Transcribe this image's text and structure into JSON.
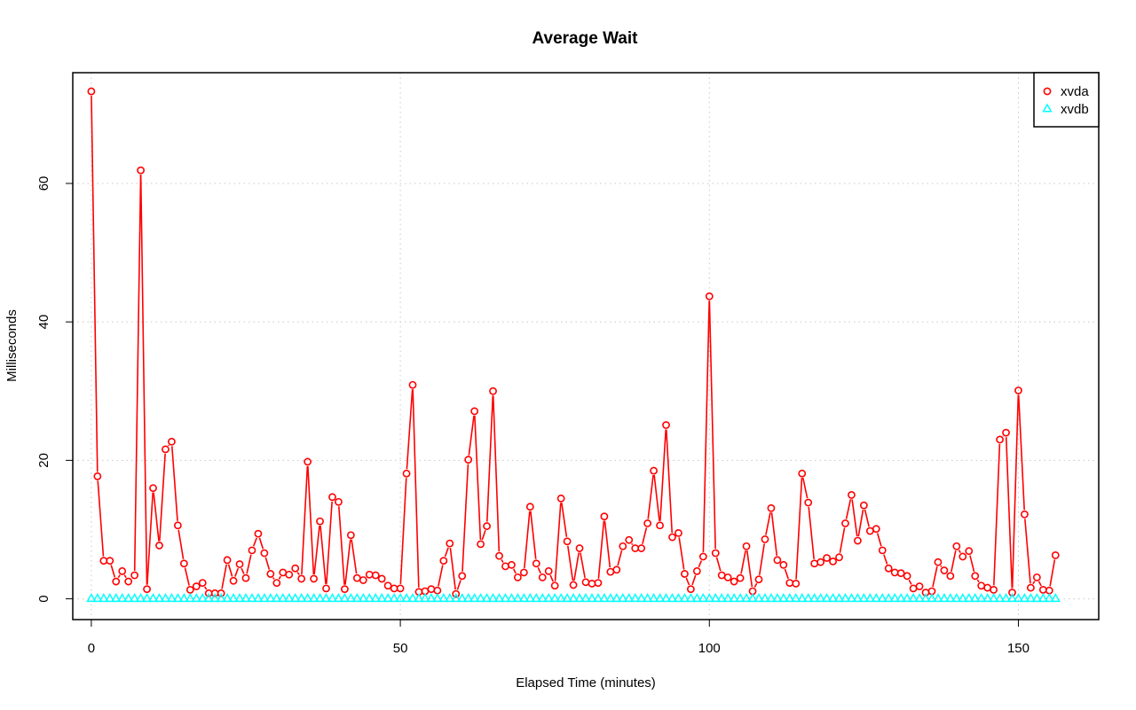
{
  "chart_data": {
    "type": "line",
    "title": "Average Wait",
    "xlabel": "Elapsed Time (minutes)",
    "ylabel": "Milliseconds",
    "xlim": [
      -3,
      163
    ],
    "ylim": [
      -3,
      76
    ],
    "xticks": [
      0,
      50,
      100,
      150
    ],
    "yticks": [
      0,
      20,
      40,
      60
    ],
    "grid": true,
    "legend_position": "top-right",
    "series": [
      {
        "name": "xvda",
        "color": "#ff0000",
        "marker": "circle",
        "x": [
          0,
          1,
          2,
          3,
          4,
          5,
          6,
          7,
          8,
          9,
          10,
          11,
          12,
          13,
          14,
          15,
          16,
          17,
          18,
          19,
          20,
          21,
          22,
          23,
          24,
          25,
          26,
          27,
          28,
          29,
          30,
          31,
          32,
          33,
          34,
          35,
          36,
          37,
          38,
          39,
          40,
          41,
          42,
          43,
          44,
          45,
          46,
          47,
          48,
          49,
          50,
          51,
          52,
          53,
          54,
          55,
          56,
          57,
          58,
          59,
          60,
          61,
          62,
          63,
          64,
          65,
          66,
          67,
          68,
          69,
          70,
          71,
          72,
          73,
          74,
          75,
          76,
          77,
          78,
          79,
          80,
          81,
          82,
          83,
          84,
          85,
          86,
          87,
          88,
          89,
          90,
          91,
          92,
          93,
          94,
          95,
          96,
          97,
          98,
          99,
          100,
          101,
          102,
          103,
          104,
          105,
          106,
          107,
          108,
          109,
          110,
          111,
          112,
          113,
          114,
          115,
          116,
          117,
          118,
          119,
          120,
          121,
          122,
          123,
          124,
          125,
          126,
          127,
          128,
          129,
          130,
          131,
          132,
          133,
          134,
          135,
          136,
          137,
          138,
          139,
          140,
          141,
          142,
          143,
          144,
          145,
          146,
          147,
          148,
          149,
          150,
          151,
          152,
          153,
          154,
          155,
          156
        ],
        "values": [
          73.3,
          17.7,
          5.5,
          5.5,
          2.5,
          4.0,
          2.5,
          3.4,
          61.9,
          1.4,
          16.0,
          7.7,
          21.6,
          22.7,
          10.6,
          5.1,
          1.3,
          1.8,
          2.3,
          0.8,
          0.8,
          0.8,
          5.6,
          2.6,
          5.0,
          3.0,
          7.0,
          9.4,
          6.6,
          3.6,
          2.3,
          3.8,
          3.5,
          4.4,
          2.9,
          19.8,
          2.9,
          11.2,
          1.5,
          14.7,
          14.0,
          1.4,
          9.2,
          3.0,
          2.7,
          3.5,
          3.4,
          2.9,
          1.9,
          1.5,
          1.5,
          18.1,
          30.9,
          1.0,
          1.1,
          1.4,
          1.2,
          5.5,
          8.0,
          0.7,
          3.3,
          20.1,
          27.1,
          7.9,
          10.5,
          30.0,
          6.2,
          4.7,
          4.9,
          3.1,
          3.8,
          13.3,
          5.1,
          3.1,
          4.0,
          1.9,
          14.5,
          8.3,
          2.0,
          7.3,
          2.4,
          2.2,
          2.3,
          11.9,
          3.9,
          4.2,
          7.6,
          8.5,
          7.3,
          7.3,
          10.9,
          18.5,
          10.6,
          25.1,
          8.9,
          9.5,
          3.6,
          1.4,
          4.0,
          6.1,
          43.7,
          6.6,
          3.4,
          3.1,
          2.5,
          3.0,
          7.6,
          1.1,
          2.8,
          8.6,
          13.1,
          5.6,
          4.9,
          2.3,
          2.2,
          18.1,
          13.9,
          5.1,
          5.3,
          5.9,
          5.4,
          6.0,
          10.9,
          15.0,
          8.4,
          13.5,
          9.8,
          10.1,
          7.0,
          4.4,
          3.8,
          3.7,
          3.3,
          1.5,
          1.8,
          0.9,
          1.1,
          5.3,
          4.1,
          3.3,
          7.6,
          6.1,
          6.9,
          3.3,
          1.9,
          1.6,
          1.3,
          23.0,
          24.0,
          0.9,
          30.1,
          12.2,
          1.6,
          3.1,
          1.3,
          1.2,
          6.3
        ]
      },
      {
        "name": "xvdb",
        "color": "#00ffff",
        "marker": "triangle",
        "x": [
          0,
          1,
          2,
          3,
          4,
          5,
          6,
          7,
          8,
          9,
          10,
          11,
          12,
          13,
          14,
          15,
          16,
          17,
          18,
          19,
          20,
          21,
          22,
          23,
          24,
          25,
          26,
          27,
          28,
          29,
          30,
          31,
          32,
          33,
          34,
          35,
          36,
          37,
          38,
          39,
          40,
          41,
          42,
          43,
          44,
          45,
          46,
          47,
          48,
          49,
          50,
          51,
          52,
          53,
          54,
          55,
          56,
          57,
          58,
          59,
          60,
          61,
          62,
          63,
          64,
          65,
          66,
          67,
          68,
          69,
          70,
          71,
          72,
          73,
          74,
          75,
          76,
          77,
          78,
          79,
          80,
          81,
          82,
          83,
          84,
          85,
          86,
          87,
          88,
          89,
          90,
          91,
          92,
          93,
          94,
          95,
          96,
          97,
          98,
          99,
          100,
          101,
          102,
          103,
          104,
          105,
          106,
          107,
          108,
          109,
          110,
          111,
          112,
          113,
          114,
          115,
          116,
          117,
          118,
          119,
          120,
          121,
          122,
          123,
          124,
          125,
          126,
          127,
          128,
          129,
          130,
          131,
          132,
          133,
          134,
          135,
          136,
          137,
          138,
          139,
          140,
          141,
          142,
          143,
          144,
          145,
          146,
          147,
          148,
          149,
          150,
          151,
          152,
          153,
          154,
          155,
          156
        ],
        "values": [
          0,
          0,
          0,
          0,
          0,
          0,
          0,
          0,
          0,
          0,
          0,
          0,
          0,
          0,
          0,
          0,
          0,
          0,
          0,
          0,
          0,
          0,
          0,
          0,
          0,
          0,
          0,
          0,
          0,
          0,
          0,
          0,
          0,
          0,
          0,
          0,
          0,
          0,
          0,
          0,
          0,
          0,
          0,
          0,
          0,
          0,
          0,
          0,
          0,
          0,
          0,
          0,
          0,
          0,
          0,
          0,
          0,
          0,
          0,
          0,
          0,
          0,
          0,
          0,
          0,
          0,
          0,
          0,
          0,
          0,
          0,
          0,
          0,
          0,
          0,
          0,
          0,
          0,
          0,
          0,
          0,
          0,
          0,
          0,
          0,
          0,
          0,
          0,
          0,
          0,
          0,
          0,
          0,
          0,
          0,
          0,
          0,
          0,
          0,
          0,
          0,
          0,
          0,
          0,
          0,
          0,
          0,
          0,
          0,
          0,
          0,
          0,
          0,
          0,
          0,
          0,
          0,
          0,
          0,
          0,
          0,
          0,
          0,
          0,
          0,
          0,
          0,
          0,
          0,
          0,
          0,
          0,
          0,
          0,
          0,
          0,
          0,
          0,
          0,
          0,
          0,
          0,
          0,
          0,
          0,
          0,
          0,
          0,
          0,
          0,
          0,
          0,
          0,
          0,
          0,
          0,
          0
        ]
      }
    ]
  }
}
